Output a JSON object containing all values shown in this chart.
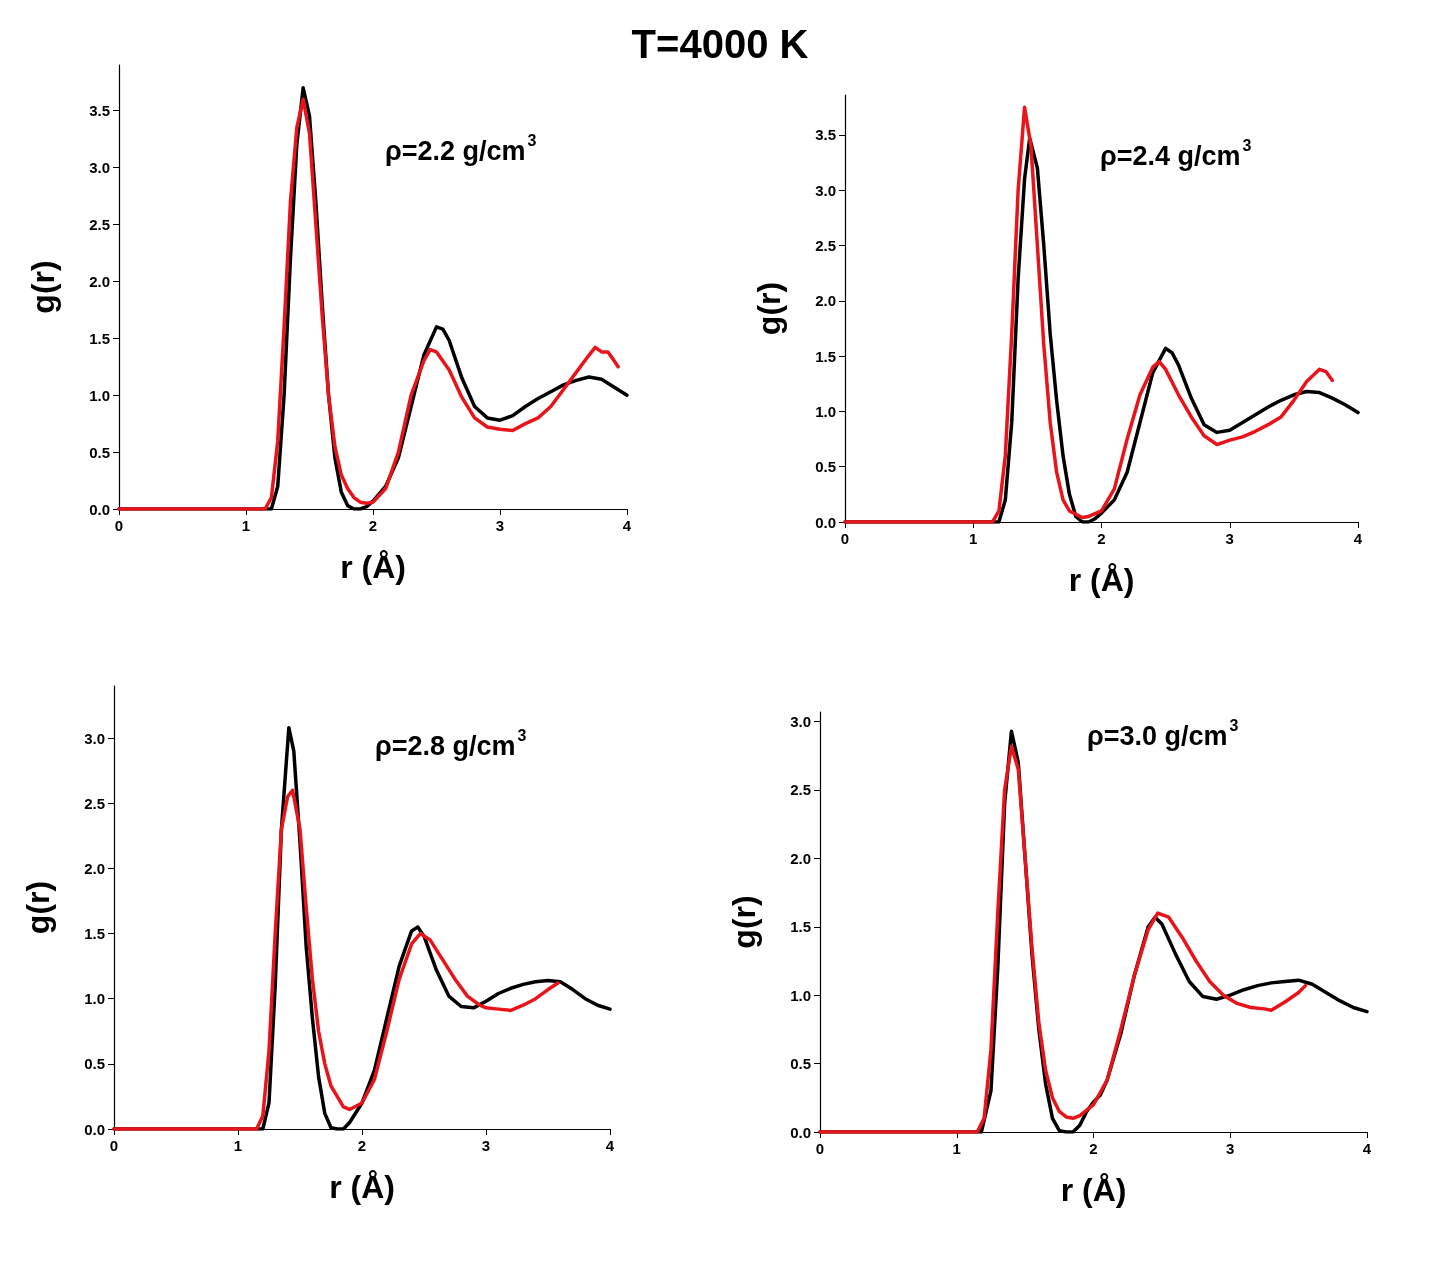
{
  "chart_data": [
    {
      "type": "line",
      "title": "T=4000 K",
      "xlabel": "r (Å)",
      "ylabel": "g(r)",
      "annotations": [
        "ρ=2.2 g/cm$^{3}$"
      ],
      "xlim": [
        0,
        4
      ],
      "xticks": [
        0,
        1,
        2,
        3,
        4
      ],
      "ylim": [
        0,
        3.9
      ],
      "yticks": [
        {
          "value": 0,
          "label": "0.0"
        },
        {
          "value": 0.5,
          "label": "0.5"
        },
        {
          "value": 1,
          "label": "1.0"
        },
        {
          "value": 1.5,
          "label": "1.5"
        },
        {
          "value": 2,
          "label": "2.0"
        },
        {
          "value": 2.5,
          "label": "2.5"
        },
        {
          "value": 3,
          "label": "3.0"
        },
        {
          "value": 3.5,
          "label": "3.5"
        }
      ],
      "grid": false,
      "marker": "none",
      "line_style": "solid",
      "series": [
        {
          "color": "#000000",
          "x": [
            0,
            1.2,
            1.25,
            1.3,
            1.35,
            1.4,
            1.45,
            1.5,
            1.55,
            1.6,
            1.65,
            1.7,
            1.75,
            1.8,
            1.85,
            1.9,
            1.95,
            2.0,
            2.1,
            2.2,
            2.3,
            2.4,
            2.5,
            2.55,
            2.6,
            2.7,
            2.8,
            2.9,
            3.0,
            3.1,
            3.2,
            3.3,
            3.4,
            3.5,
            3.6,
            3.7,
            3.8,
            3.9,
            4.0
          ],
          "values": [
            0,
            0,
            0.2,
            1.0,
            2.2,
            3.2,
            3.7,
            3.45,
            2.7,
            1.8,
            1.0,
            0.45,
            0.15,
            0.03,
            0,
            0,
            0.02,
            0.07,
            0.2,
            0.45,
            0.9,
            1.35,
            1.6,
            1.58,
            1.48,
            1.15,
            0.9,
            0.8,
            0.78,
            0.82,
            0.9,
            0.97,
            1.03,
            1.09,
            1.13,
            1.16,
            1.14,
            1.07,
            1.0
          ]
        },
        {
          "color": "#e8141a",
          "x": [
            0,
            1.15,
            1.2,
            1.25,
            1.3,
            1.35,
            1.4,
            1.45,
            1.5,
            1.55,
            1.6,
            1.65,
            1.7,
            1.75,
            1.8,
            1.85,
            1.9,
            1.95,
            2.0,
            2.1,
            2.2,
            2.3,
            2.4,
            2.45,
            2.5,
            2.6,
            2.7,
            2.8,
            2.9,
            3.0,
            3.1,
            3.2,
            3.3,
            3.4,
            3.5,
            3.6,
            3.7,
            3.75,
            3.8,
            3.85,
            3.9,
            3.93
          ],
          "values": [
            0,
            0,
            0.1,
            0.6,
            1.6,
            2.7,
            3.35,
            3.6,
            3.3,
            2.5,
            1.7,
            1.0,
            0.55,
            0.3,
            0.18,
            0.1,
            0.06,
            0.05,
            0.06,
            0.18,
            0.5,
            1.0,
            1.3,
            1.4,
            1.38,
            1.22,
            0.98,
            0.8,
            0.72,
            0.7,
            0.69,
            0.75,
            0.8,
            0.9,
            1.05,
            1.2,
            1.35,
            1.42,
            1.38,
            1.38,
            1.3,
            1.25
          ]
        }
      ]
    },
    {
      "type": "line",
      "xlabel": "r (Å)",
      "ylabel": "g(r)",
      "annotations": [
        "ρ=2.4 g/cm$^{3}$"
      ],
      "xlim": [
        0,
        4
      ],
      "xticks": [
        0,
        1,
        2,
        3,
        4
      ],
      "ylim": [
        0,
        3.86
      ],
      "yticks": [
        {
          "value": 0,
          "label": "0.0"
        },
        {
          "value": 0.5,
          "label": "0.5"
        },
        {
          "value": 1,
          "label": "1.0"
        },
        {
          "value": 1.5,
          "label": "1.5"
        },
        {
          "value": 2,
          "label": "2.0"
        },
        {
          "value": 2.5,
          "label": "2.5"
        },
        {
          "value": 3,
          "label": "3.0"
        },
        {
          "value": 3.5,
          "label": "3.5"
        }
      ],
      "grid": false,
      "marker": "none",
      "line_style": "solid",
      "series": [
        {
          "color": "#000000",
          "x": [
            0,
            1.2,
            1.25,
            1.3,
            1.35,
            1.4,
            1.44,
            1.5,
            1.55,
            1.6,
            1.65,
            1.7,
            1.75,
            1.8,
            1.85,
            1.9,
            1.95,
            2.0,
            2.1,
            2.2,
            2.3,
            2.4,
            2.5,
            2.55,
            2.6,
            2.7,
            2.8,
            2.9,
            3.0,
            3.1,
            3.2,
            3.3,
            3.4,
            3.5,
            3.6,
            3.7,
            3.8,
            3.9,
            4.0
          ],
          "values": [
            0,
            0,
            0.2,
            0.9,
            2.2,
            3.1,
            3.47,
            3.2,
            2.5,
            1.7,
            1.1,
            0.6,
            0.25,
            0.05,
            0,
            0,
            0.03,
            0.08,
            0.2,
            0.45,
            0.9,
            1.35,
            1.57,
            1.53,
            1.42,
            1.12,
            0.88,
            0.81,
            0.83,
            0.9,
            0.97,
            1.04,
            1.1,
            1.15,
            1.18,
            1.17,
            1.12,
            1.06,
            0.99
          ]
        },
        {
          "color": "#e8141a",
          "x": [
            0,
            1.15,
            1.2,
            1.25,
            1.3,
            1.35,
            1.4,
            1.45,
            1.5,
            1.55,
            1.6,
            1.65,
            1.7,
            1.75,
            1.8,
            1.85,
            1.9,
            2.0,
            2.1,
            2.2,
            2.3,
            2.4,
            2.45,
            2.5,
            2.6,
            2.7,
            2.8,
            2.9,
            3.0,
            3.1,
            3.2,
            3.3,
            3.4,
            3.5,
            3.6,
            3.7,
            3.75,
            3.8
          ],
          "values": [
            0,
            0,
            0.1,
            0.6,
            1.7,
            3.0,
            3.75,
            3.4,
            2.5,
            1.6,
            0.9,
            0.45,
            0.2,
            0.1,
            0.07,
            0.04,
            0.05,
            0.1,
            0.3,
            0.75,
            1.15,
            1.4,
            1.45,
            1.38,
            1.15,
            0.95,
            0.78,
            0.7,
            0.74,
            0.77,
            0.82,
            0.88,
            0.95,
            1.1,
            1.27,
            1.38,
            1.36,
            1.28
          ]
        }
      ]
    },
    {
      "type": "line",
      "xlabel": "r (Å)",
      "ylabel": "g(r)",
      "annotations": [
        "ρ=2.8 g/cm$^{3}$"
      ],
      "xlim": [
        0,
        4
      ],
      "xticks": [
        0,
        1,
        2,
        3,
        4
      ],
      "ylim": [
        0,
        3.4
      ],
      "yticks": [
        {
          "value": 0,
          "label": "0.0"
        },
        {
          "value": 0.5,
          "label": "0.5"
        },
        {
          "value": 1,
          "label": "1.0"
        },
        {
          "value": 1.5,
          "label": "1.5"
        },
        {
          "value": 2,
          "label": "2.0"
        },
        {
          "value": 2.5,
          "label": "2.5"
        },
        {
          "value": 3,
          "label": "3.0"
        }
      ],
      "grid": false,
      "marker": "none",
      "line_style": "solid",
      "series": [
        {
          "color": "#000000",
          "x": [
            0,
            1.2,
            1.25,
            1.3,
            1.35,
            1.41,
            1.45,
            1.5,
            1.55,
            1.6,
            1.65,
            1.7,
            1.75,
            1.8,
            1.85,
            1.9,
            2.0,
            2.1,
            2.2,
            2.3,
            2.4,
            2.45,
            2.5,
            2.6,
            2.7,
            2.8,
            2.9,
            3.0,
            3.1,
            3.2,
            3.3,
            3.4,
            3.5,
            3.6,
            3.7,
            3.8,
            3.9,
            4.0
          ],
          "values": [
            0,
            0,
            0.2,
            1.1,
            2.3,
            3.08,
            2.9,
            2.2,
            1.4,
            0.85,
            0.4,
            0.12,
            0.01,
            0,
            0,
            0.05,
            0.2,
            0.45,
            0.85,
            1.25,
            1.52,
            1.55,
            1.48,
            1.22,
            1.02,
            0.94,
            0.93,
            0.98,
            1.04,
            1.08,
            1.11,
            1.13,
            1.14,
            1.13,
            1.07,
            1.0,
            0.95,
            0.92
          ]
        },
        {
          "color": "#e8141a",
          "x": [
            0,
            1.15,
            1.2,
            1.25,
            1.3,
            1.35,
            1.4,
            1.44,
            1.5,
            1.55,
            1.6,
            1.65,
            1.7,
            1.75,
            1.8,
            1.85,
            1.9,
            2.0,
            2.1,
            2.2,
            2.3,
            2.4,
            2.47,
            2.55,
            2.65,
            2.75,
            2.85,
            2.95,
            3.0,
            3.1,
            3.2,
            3.3,
            3.4,
            3.5,
            3.58
          ],
          "values": [
            0,
            0,
            0.1,
            0.6,
            1.5,
            2.3,
            2.55,
            2.6,
            2.3,
            1.7,
            1.15,
            0.75,
            0.5,
            0.33,
            0.25,
            0.17,
            0.15,
            0.2,
            0.38,
            0.75,
            1.15,
            1.42,
            1.5,
            1.45,
            1.3,
            1.15,
            1.02,
            0.95,
            0.93,
            0.92,
            0.91,
            0.95,
            1.0,
            1.07,
            1.12
          ]
        }
      ]
    },
    {
      "type": "line",
      "xlabel": "r (Å)",
      "ylabel": "g(r)",
      "annotations": [
        "ρ=3.0 g/cm$^{3}$"
      ],
      "xlim": [
        0,
        4
      ],
      "xticks": [
        0,
        1,
        2,
        3,
        4
      ],
      "ylim": [
        0,
        3.07
      ],
      "yticks": [
        {
          "value": 0,
          "label": "0.0"
        },
        {
          "value": 0.5,
          "label": "0.5"
        },
        {
          "value": 1,
          "label": "1.0"
        },
        {
          "value": 1.5,
          "label": "1.5"
        },
        {
          "value": 2,
          "label": "2.0"
        },
        {
          "value": 2.5,
          "label": "2.5"
        },
        {
          "value": 3,
          "label": "3.0"
        }
      ],
      "grid": false,
      "marker": "none",
      "line_style": "solid",
      "series": [
        {
          "color": "#000000",
          "x": [
            0,
            1.18,
            1.25,
            1.3,
            1.35,
            1.4,
            1.45,
            1.5,
            1.55,
            1.6,
            1.65,
            1.7,
            1.75,
            1.8,
            1.85,
            1.9,
            1.95,
            2.0,
            2.05,
            2.1,
            2.2,
            2.3,
            2.4,
            2.45,
            2.5,
            2.6,
            2.7,
            2.8,
            2.9,
            3.0,
            3.1,
            3.2,
            3.3,
            3.4,
            3.5,
            3.6,
            3.7,
            3.8,
            3.9,
            4.0
          ],
          "values": [
            0,
            0,
            0.3,
            1.2,
            2.4,
            2.93,
            2.7,
            2.0,
            1.3,
            0.75,
            0.35,
            0.1,
            0.01,
            0,
            0,
            0.05,
            0.15,
            0.22,
            0.27,
            0.38,
            0.72,
            1.15,
            1.5,
            1.57,
            1.52,
            1.3,
            1.1,
            0.99,
            0.97,
            1.0,
            1.04,
            1.07,
            1.09,
            1.1,
            1.11,
            1.08,
            1.02,
            0.96,
            0.91,
            0.88
          ]
        },
        {
          "color": "#e8141a",
          "x": [
            0,
            1.15,
            1.2,
            1.25,
            1.3,
            1.35,
            1.4,
            1.45,
            1.5,
            1.55,
            1.6,
            1.65,
            1.7,
            1.75,
            1.8,
            1.85,
            1.9,
            2.0,
            2.1,
            2.2,
            2.3,
            2.4,
            2.47,
            2.55,
            2.65,
            2.75,
            2.85,
            2.95,
            3.05,
            3.15,
            3.25,
            3.3,
            3.4,
            3.5,
            3.55
          ],
          "values": [
            0,
            0,
            0.1,
            0.6,
            1.6,
            2.5,
            2.82,
            2.65,
            2.0,
            1.35,
            0.8,
            0.45,
            0.25,
            0.15,
            0.11,
            0.1,
            0.12,
            0.2,
            0.38,
            0.75,
            1.15,
            1.48,
            1.6,
            1.57,
            1.42,
            1.25,
            1.1,
            1.0,
            0.94,
            0.91,
            0.9,
            0.89,
            0.95,
            1.02,
            1.07
          ]
        }
      ]
    }
  ]
}
